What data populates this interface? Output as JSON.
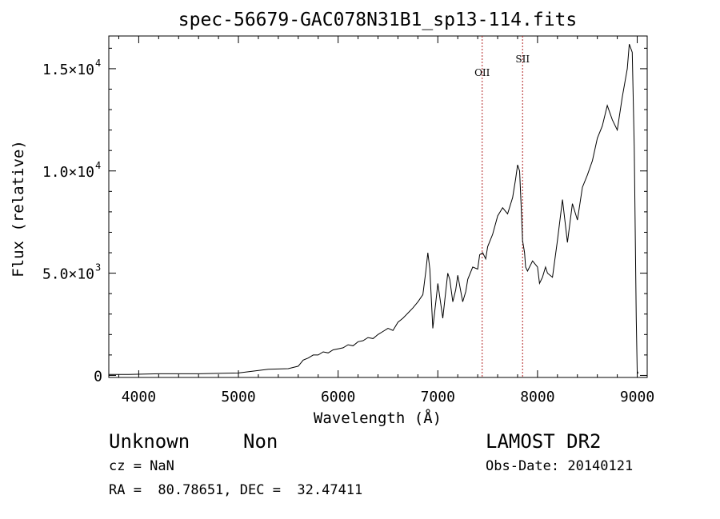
{
  "chart_data": {
    "type": "line",
    "title": "spec-56679-GAC078N31B1_sp13-114.fits",
    "xlabel": "Wavelength (Å)",
    "ylabel": "Flux (relative)",
    "xlim": [
      3700,
      9100
    ],
    "ylim": [
      -100,
      16600
    ],
    "xticks": [
      4000,
      5000,
      6000,
      7000,
      8000,
      9000
    ],
    "xtick_labels": [
      "4000",
      "5000",
      "6000",
      "7000",
      "8000",
      "9000"
    ],
    "yticks": [
      {
        "value": 0,
        "base": "0",
        "exp": ""
      },
      {
        "value": 5000,
        "base": "5.0×10",
        "exp": "3"
      },
      {
        "value": 10000,
        "base": "1.0×10",
        "exp": "4"
      },
      {
        "value": 15000,
        "base": "1.5×10",
        "exp": "4"
      }
    ],
    "lines": [
      {
        "label": "OII",
        "x": 7445
      },
      {
        "label": "SII",
        "x": 7850
      }
    ],
    "series": [
      {
        "x": [
          3700,
          3900,
          4200,
          4600,
          5000,
          5300,
          5500,
          5600,
          5650,
          5700,
          5750,
          5800,
          5850,
          5900,
          5950,
          6000,
          6050,
          6100,
          6150,
          6200,
          6250,
          6300,
          6350,
          6400,
          6450,
          6500,
          6550,
          6600,
          6650,
          6700,
          6750,
          6800,
          6850,
          6880,
          6900,
          6920,
          6950,
          6980,
          7000,
          7050,
          7100,
          7120,
          7150,
          7180,
          7200,
          7250,
          7280,
          7300,
          7350,
          7400,
          7420,
          7450,
          7480,
          7500,
          7550,
          7600,
          7650,
          7700,
          7750,
          7780,
          7800,
          7820,
          7840,
          7850,
          7870,
          7880,
          7900,
          7950,
          8000,
          8020,
          8050,
          8080,
          8100,
          8150,
          8200,
          8250,
          8300,
          8350,
          8400,
          8450,
          8500,
          8550,
          8600,
          8650,
          8700,
          8750,
          8800,
          8850,
          8900,
          8920,
          8950,
          8970,
          8990,
          9000,
          9010
        ],
        "y": [
          50,
          50,
          80,
          80,
          120,
          300,
          330,
          450,
          750,
          850,
          1000,
          1000,
          1150,
          1100,
          1250,
          1300,
          1350,
          1500,
          1450,
          1650,
          1700,
          1850,
          1800,
          2000,
          2150,
          2300,
          2200,
          2600,
          2800,
          3050,
          3300,
          3600,
          3950,
          5100,
          6000,
          5200,
          2300,
          3600,
          4500,
          2800,
          5000,
          4700,
          3600,
          4200,
          4900,
          3600,
          4100,
          4700,
          5300,
          5200,
          5900,
          6000,
          5700,
          6300,
          6900,
          7800,
          8200,
          7900,
          8700,
          9600,
          10300,
          10000,
          7800,
          6600,
          6000,
          5300,
          5100,
          5600,
          5300,
          4500,
          4800,
          5300,
          5000,
          4800,
          6600,
          8600,
          6500,
          8400,
          7600,
          9200,
          9800,
          10500,
          11600,
          12200,
          13200,
          12500,
          12000,
          13600,
          15000,
          16200,
          15800,
          11200,
          2800,
          200,
          100
        ]
      }
    ]
  },
  "info": {
    "class_label": "Unknown",
    "subclass_label": "Non",
    "survey": "LAMOST DR2",
    "cz": "cz = NaN",
    "obs_date": "Obs-Date: 20140121",
    "coords": "RA =  80.78651, DEC =  32.47411"
  }
}
